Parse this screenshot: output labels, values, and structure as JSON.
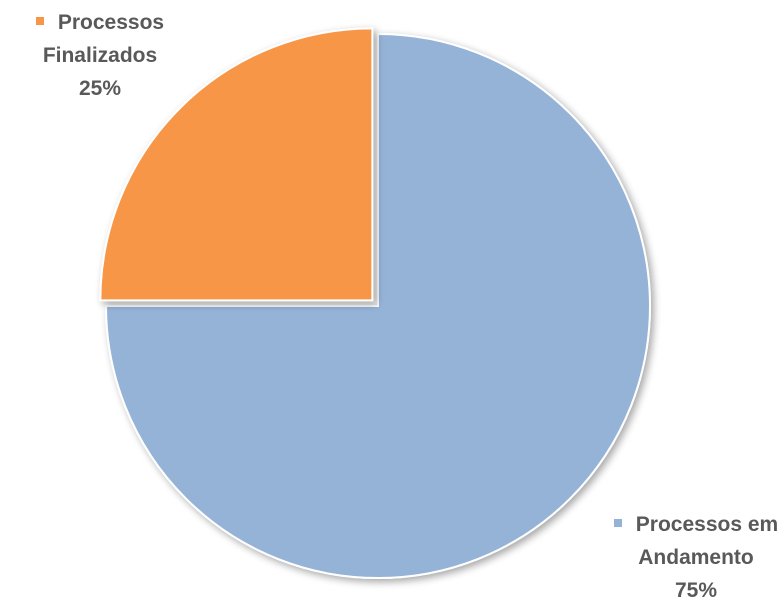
{
  "chart_data": {
    "type": "pie",
    "title": "",
    "slices": [
      {
        "name_lines": [
          "Processos em",
          "Andamento"
        ],
        "value": 75,
        "percent_label": "75%",
        "color": "#95B3D7"
      },
      {
        "name_lines": [
          "Processos",
          "Finalizados"
        ],
        "value": 25,
        "percent_label": "25%",
        "color": "#F79646"
      }
    ],
    "start_angle_deg": 0,
    "direction": "clockwise",
    "exploded_slice": "Processos Finalizados",
    "legend": "none"
  }
}
